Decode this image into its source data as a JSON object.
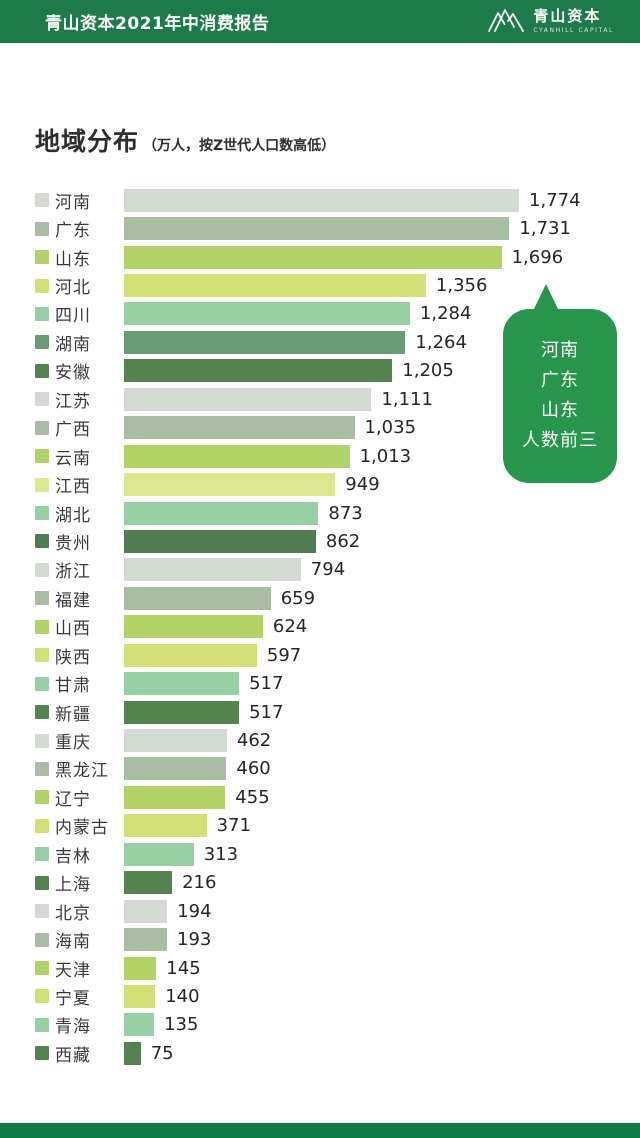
{
  "header": {
    "title": "青山资本2021年中消费报告",
    "logo_cn": "青山资本",
    "logo_en": "CYANHILL CAPITAL"
  },
  "page_title": {
    "title": "地域分布",
    "subtitle": "（万人，按Z世代人口数高低）"
  },
  "callout": {
    "lines": [
      "河南",
      "广东",
      "山东",
      "人数前三"
    ],
    "color": "#27954c"
  },
  "colors": {
    "header_green": "#1d7b4a",
    "footer_green": "#0e7a44",
    "label_dark": "#3a3a3a"
  },
  "chart_data": {
    "type": "bar",
    "orientation": "horizontal",
    "title": "地域分布",
    "unit": "万人",
    "sort_note": "按Z世代人口数高低",
    "xlim": [
      0,
      1774
    ],
    "grid": false,
    "legend_position": "left-of-category",
    "categories": [
      "河南",
      "广东",
      "山东",
      "河北",
      "四川",
      "湖南",
      "安徽",
      "江苏",
      "广西",
      "云南",
      "江西",
      "湖北",
      "贵州",
      "浙江",
      "福建",
      "山西",
      "陕西",
      "甘肃",
      "新疆",
      "重庆",
      "黑龙江",
      "辽宁",
      "内蒙古",
      "吉林",
      "上海",
      "北京",
      "海南",
      "天津",
      "宁夏",
      "青海",
      "西藏"
    ],
    "values": [
      1774,
      1731,
      1696,
      1356,
      1284,
      1264,
      1205,
      1111,
      1035,
      1013,
      949,
      873,
      862,
      794,
      659,
      624,
      597,
      517,
      517,
      462,
      460,
      455,
      371,
      313,
      216,
      194,
      193,
      145,
      140,
      135,
      75
    ],
    "value_labels": [
      "1,774",
      "1,731",
      "1,696",
      "1,356",
      "1,284",
      "1,264",
      "1,205",
      "1,111",
      "1,035",
      "1,013",
      "949",
      "873",
      "862",
      "794",
      "659",
      "624",
      "597",
      "517",
      "517",
      "462",
      "460",
      "455",
      "371",
      "313",
      "216",
      "194",
      "193",
      "145",
      "140",
      "135",
      "75"
    ],
    "bar_colors": [
      "#d3dad2",
      "#a9bda2",
      "#b0d266",
      "#d2e076",
      "#95cfa2",
      "#689c74",
      "#55834f",
      "#d3dad2",
      "#a9bda2",
      "#b0d266",
      "#dce78f",
      "#95cfa2",
      "#4f7d51",
      "#d3dad2",
      "#a9bda2",
      "#b0d266",
      "#d2e076",
      "#95cfa2",
      "#55834f",
      "#d3dad2",
      "#a9bda2",
      "#b0d266",
      "#d2e076",
      "#95cfa2",
      "#55834f",
      "#d3dad2",
      "#a9bda2",
      "#b0d266",
      "#d2e076",
      "#95cfa2",
      "#55834f"
    ]
  }
}
